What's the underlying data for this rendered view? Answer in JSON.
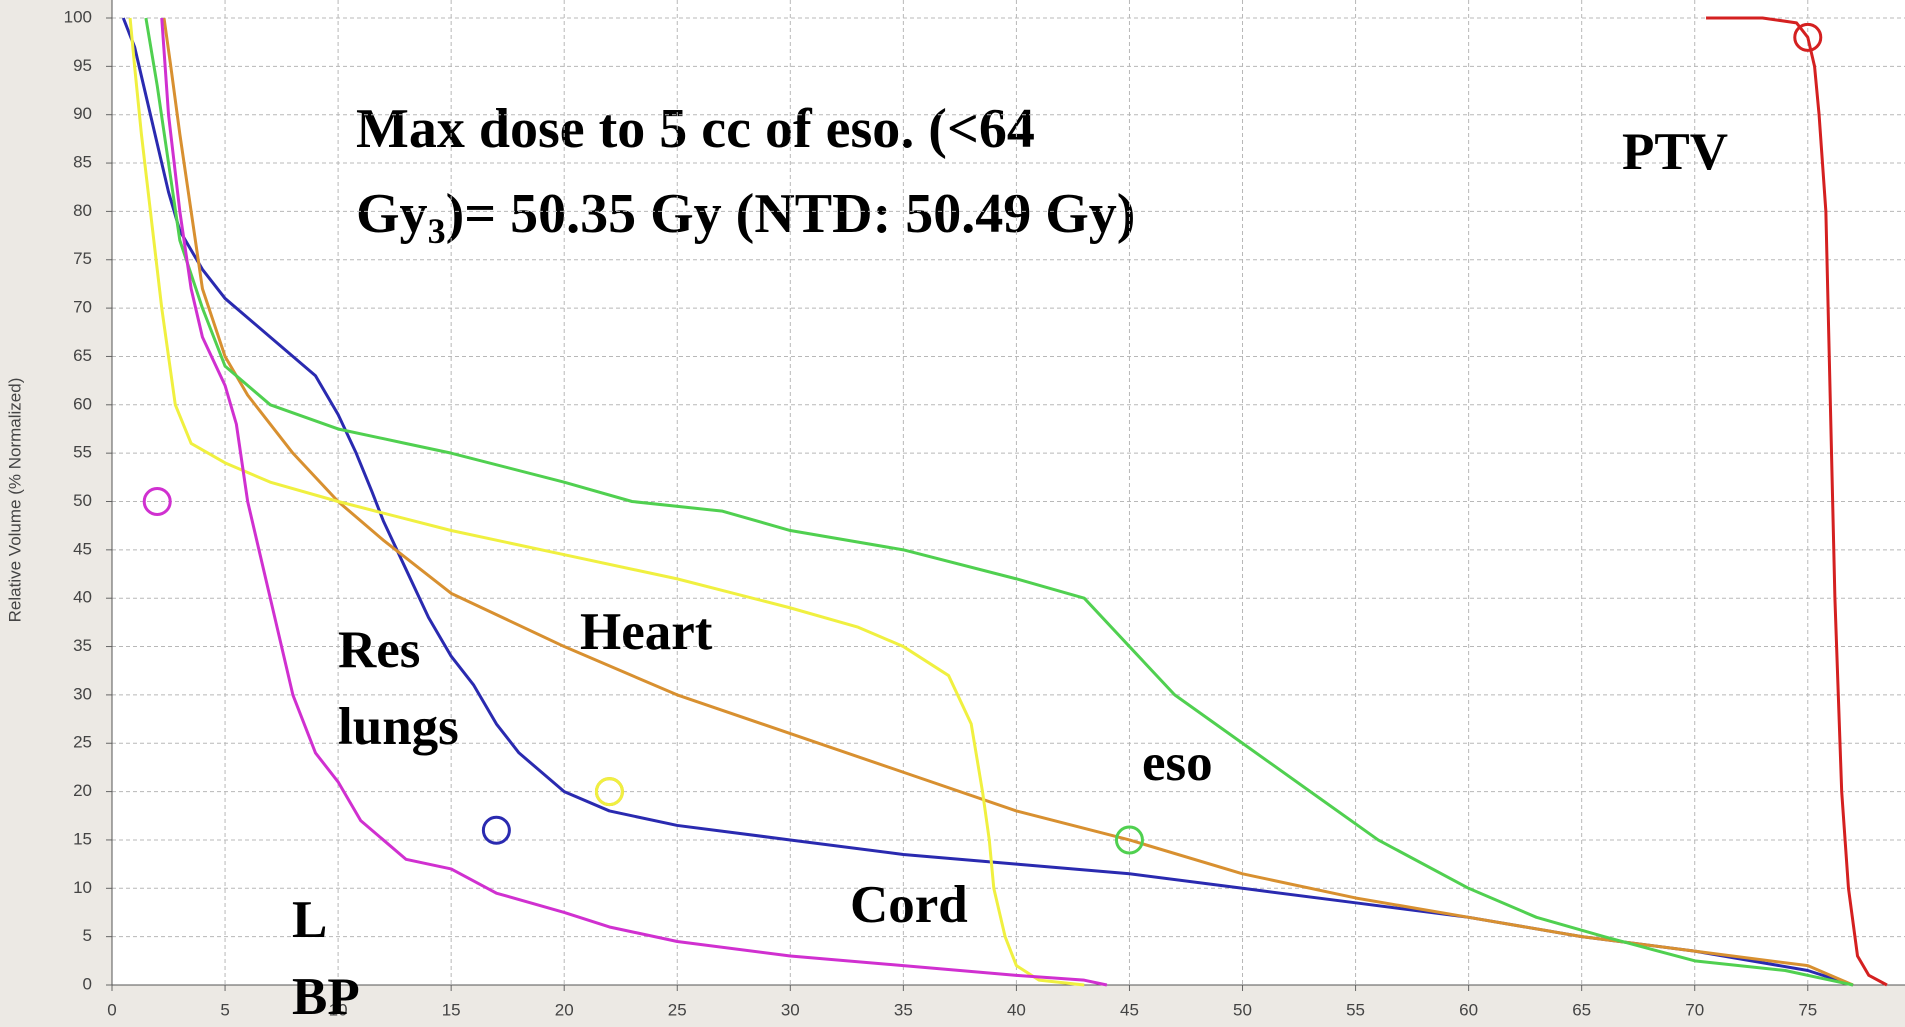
{
  "chart_data": {
    "type": "line",
    "ylabel": "Relative Volume (% Normalized)",
    "xlim": [
      0,
      79.3
    ],
    "ylim": [
      0,
      100
    ],
    "xticks": [
      0,
      5,
      10,
      15,
      20,
      25,
      30,
      35,
      40,
      45,
      50,
      55,
      60,
      65,
      70,
      75
    ],
    "yticks": [
      0,
      5,
      10,
      15,
      20,
      25,
      30,
      35,
      40,
      45,
      50,
      55,
      60,
      65,
      70,
      75,
      80,
      85,
      90,
      95,
      100
    ],
    "grid": true,
    "annotation": [
      "Max dose to 5 cc of eso. (<64",
      "Gy",
      "3",
      ")= 50.35 Gy (NTD: 50.49 Gy)"
    ],
    "series": [
      {
        "name": "PTV",
        "color": "#d42020",
        "x": [
          70.5,
          73,
          74.5,
          75,
          75.3,
          75.5,
          75.8,
          76,
          76.2,
          76.5,
          76.8,
          77.2,
          77.7,
          78.5
        ],
        "values": [
          100,
          100,
          99.5,
          98,
          95,
          90,
          80,
          60,
          40,
          20,
          10,
          3,
          1,
          0
        ],
        "marker": {
          "x": 75,
          "y": 98
        }
      },
      {
        "name": "Res lungs",
        "color": "#2a2ab0",
        "x": [
          0.5,
          1,
          1.5,
          2,
          2.5,
          3,
          4,
          5,
          7,
          9,
          10,
          10.8,
          11.5,
          12,
          13,
          14,
          15,
          16,
          17,
          18,
          19,
          20,
          22,
          25,
          30,
          35,
          40,
          45,
          50,
          55,
          60,
          65,
          70,
          75,
          77
        ],
        "values": [
          100,
          97,
          92,
          87,
          82,
          78,
          74,
          71,
          67,
          63,
          59,
          55,
          51,
          48,
          43,
          38,
          34,
          31,
          27,
          24,
          22,
          20,
          18,
          16.5,
          15,
          13.5,
          12.5,
          11.5,
          10,
          8.5,
          7,
          5,
          3.5,
          1.5,
          0
        ],
        "marker": {
          "x": 17,
          "y": 16
        }
      },
      {
        "name": "Heart",
        "color": "#d89030",
        "x": [
          2.3,
          2.6,
          3,
          3.5,
          4,
          5,
          6,
          8,
          10,
          12,
          15,
          20,
          25,
          30,
          35,
          40,
          45,
          50,
          55,
          60,
          65,
          70,
          75,
          77
        ],
        "values": [
          100,
          95,
          88,
          80,
          72,
          65,
          61,
          55,
          50,
          46,
          40.5,
          35,
          30,
          26,
          22,
          18,
          15,
          11.5,
          9,
          7,
          5,
          3.5,
          2,
          0
        ],
        "marker": {
          "x": 22,
          "y": 20
        }
      },
      {
        "name": "eso",
        "color": "#50d050",
        "x": [
          1.5,
          2,
          2.5,
          3,
          4,
          5,
          7,
          10,
          13,
          15,
          20,
          23,
          27,
          30,
          35,
          40,
          43,
          45,
          47,
          50,
          53,
          56,
          60,
          63,
          66,
          70,
          74,
          76,
          77
        ],
        "values": [
          100,
          93,
          85,
          77,
          70,
          64,
          60,
          57.5,
          56,
          55,
          52,
          50,
          49,
          47,
          45,
          42,
          40,
          35,
          30,
          25,
          20,
          15,
          10,
          7,
          5,
          2.5,
          1.5,
          0.5,
          0
        ],
        "marker": {
          "x": 45,
          "y": 15
        }
      },
      {
        "name": "Cord",
        "color": "#f0f040",
        "x": [
          0.8,
          1,
          1.3,
          1.7,
          2.2,
          2.8,
          3.5,
          5,
          7,
          10,
          15,
          20,
          25,
          30,
          33,
          35,
          37,
          38,
          38.5,
          38.8,
          39,
          39.5,
          40,
          41,
          43
        ],
        "values": [
          100,
          95,
          88,
          80,
          70,
          60,
          56,
          54,
          52,
          50,
          47,
          44.5,
          42,
          39,
          37,
          35,
          32,
          27,
          20,
          15,
          10,
          5,
          2,
          0.5,
          0
        ],
        "marker": {
          "x": 22,
          "y": 20
        }
      },
      {
        "name": "L BP",
        "color": "#d030d0",
        "x": [
          2.2,
          2.5,
          3,
          3.5,
          4,
          5,
          5.5,
          6,
          6.5,
          7,
          8,
          9,
          10,
          11,
          12,
          13,
          15,
          17,
          20,
          22,
          25,
          30,
          35,
          40,
          43,
          44
        ],
        "values": [
          100,
          90,
          80,
          72,
          67,
          62,
          58,
          50,
          45,
          40,
          30,
          24,
          21,
          17,
          15,
          13,
          12,
          9.5,
          7.5,
          6,
          4.5,
          3,
          2,
          1,
          0.5,
          0
        ],
        "marker": {
          "x": 2,
          "y": 50
        }
      }
    ]
  }
}
